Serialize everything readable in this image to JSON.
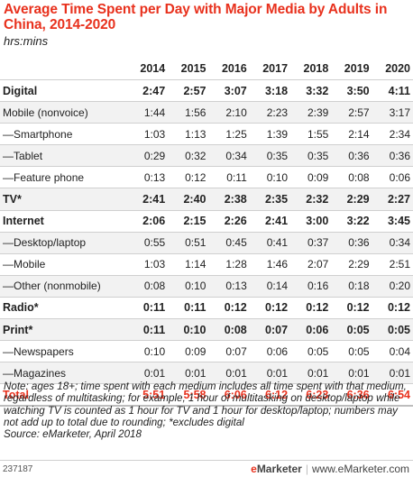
{
  "chart_data": {
    "type": "table",
    "title": "Average Time Spent per Day with Major Media by Adults in China, 2014-2020",
    "subtitle": "hrs:mins",
    "columns": [
      "2014",
      "2015",
      "2016",
      "2017",
      "2018",
      "2019",
      "2020"
    ],
    "rows": [
      {
        "label": "Digital",
        "style": "bold",
        "values": [
          "2:47",
          "2:57",
          "3:07",
          "3:18",
          "3:32",
          "3:50",
          "4:11"
        ]
      },
      {
        "label": "Mobile (nonvoice)",
        "style": "normal",
        "values": [
          "1:44",
          "1:56",
          "2:10",
          "2:23",
          "2:39",
          "2:57",
          "3:17"
        ]
      },
      {
        "label": "—Smartphone",
        "style": "normal",
        "values": [
          "1:03",
          "1:13",
          "1:25",
          "1:39",
          "1:55",
          "2:14",
          "2:34"
        ]
      },
      {
        "label": "—Tablet",
        "style": "normal",
        "values": [
          "0:29",
          "0:32",
          "0:34",
          "0:35",
          "0:35",
          "0:36",
          "0:36"
        ]
      },
      {
        "label": "—Feature phone",
        "style": "normal",
        "values": [
          "0:13",
          "0:12",
          "0:11",
          "0:10",
          "0:09",
          "0:08",
          "0:06"
        ]
      },
      {
        "label": "TV*",
        "style": "bold",
        "values": [
          "2:41",
          "2:40",
          "2:38",
          "2:35",
          "2:32",
          "2:29",
          "2:27"
        ]
      },
      {
        "label": "Internet",
        "style": "bold",
        "values": [
          "2:06",
          "2:15",
          "2:26",
          "2:41",
          "3:00",
          "3:22",
          "3:45"
        ]
      },
      {
        "label": "—Desktop/laptop",
        "style": "normal",
        "values": [
          "0:55",
          "0:51",
          "0:45",
          "0:41",
          "0:37",
          "0:36",
          "0:34"
        ]
      },
      {
        "label": "—Mobile",
        "style": "normal",
        "values": [
          "1:03",
          "1:14",
          "1:28",
          "1:46",
          "2:07",
          "2:29",
          "2:51"
        ]
      },
      {
        "label": "—Other (nonmobile)",
        "style": "normal",
        "values": [
          "0:08",
          "0:10",
          "0:13",
          "0:14",
          "0:16",
          "0:18",
          "0:20"
        ]
      },
      {
        "label": "Radio*",
        "style": "bold",
        "values": [
          "0:11",
          "0:11",
          "0:12",
          "0:12",
          "0:12",
          "0:12",
          "0:12"
        ]
      },
      {
        "label": "Print*",
        "style": "bold",
        "values": [
          "0:11",
          "0:10",
          "0:08",
          "0:07",
          "0:06",
          "0:05",
          "0:05"
        ]
      },
      {
        "label": "—Newspapers",
        "style": "normal",
        "values": [
          "0:10",
          "0:09",
          "0:07",
          "0:06",
          "0:05",
          "0:05",
          "0:04"
        ]
      },
      {
        "label": "—Magazines",
        "style": "normal",
        "values": [
          "0:01",
          "0:01",
          "0:01",
          "0:01",
          "0:01",
          "0:01",
          "0:01"
        ]
      },
      {
        "label": "Total",
        "style": "total",
        "values": [
          "5:51",
          "5:58",
          "6:06",
          "6:12",
          "6:23",
          "6:36",
          "6:54"
        ]
      }
    ]
  },
  "note": "Note: ages 18+; time spent with each medium includes all time spent with that medium, regardless of multitasking; for example, 1 hour of multitasking on desktop/laptop while watching TV is counted as 1 hour for TV and 1 hour for desktop/laptop; numbers may not add up to total due to rounding; *excludes digital",
  "source": "Source: eMarketer, April 2018",
  "footer": {
    "chart_id": "237187",
    "brand_e": "e",
    "brand_rest": "Marketer",
    "brand_sep": "|",
    "brand_site": "www.eMarketer.com"
  },
  "colors": {
    "accent": "#e8311d",
    "row_stripe": "#f2f2f2"
  }
}
